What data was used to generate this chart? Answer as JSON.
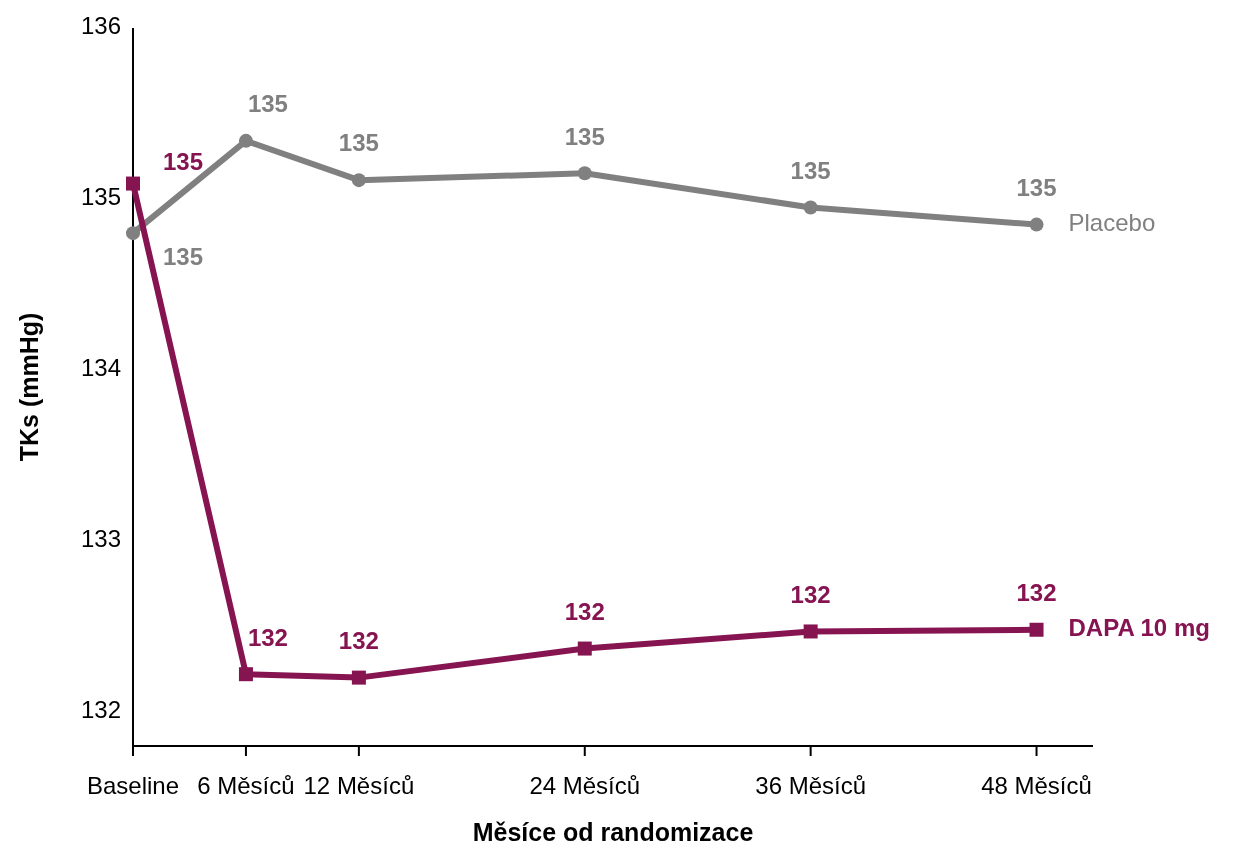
{
  "chart_data": {
    "type": "line",
    "xlabel": "Měsíce od randomizace",
    "ylabel": "TKs (mmHg)",
    "x": [
      0,
      6,
      12,
      24,
      36,
      48
    ],
    "xlim": [
      0,
      51
    ],
    "xticks": [
      {
        "value": 0,
        "label": "Baseline"
      },
      {
        "value": 6,
        "label": "6 Měsíců"
      },
      {
        "value": 12,
        "label": "12 Měsíců"
      },
      {
        "value": 24,
        "label": "24 Měsíců"
      },
      {
        "value": 36,
        "label": "36 Měsíců"
      },
      {
        "value": 48,
        "label": "48 Měsíců"
      }
    ],
    "ylim": [
      131.8,
      136
    ],
    "yticks": [
      132,
      133,
      134,
      135,
      136
    ],
    "grid": false,
    "line_style": "solid",
    "series": [
      {
        "name": "Placebo",
        "color": "#808080",
        "marker": "circle",
        "values": [
          134.8,
          135.34,
          135.11,
          135.15,
          134.95,
          134.85
        ],
        "value_labels": [
          "135",
          "135",
          "135",
          "135",
          "135",
          "135"
        ]
      },
      {
        "name": "DAPA 10 mg",
        "color": "#861451",
        "marker": "square",
        "values": [
          135.09,
          132.22,
          132.2,
          132.37,
          132.47,
          132.48
        ],
        "value_labels": [
          "135",
          "132",
          "132",
          "132",
          "132",
          "132"
        ]
      }
    ]
  }
}
